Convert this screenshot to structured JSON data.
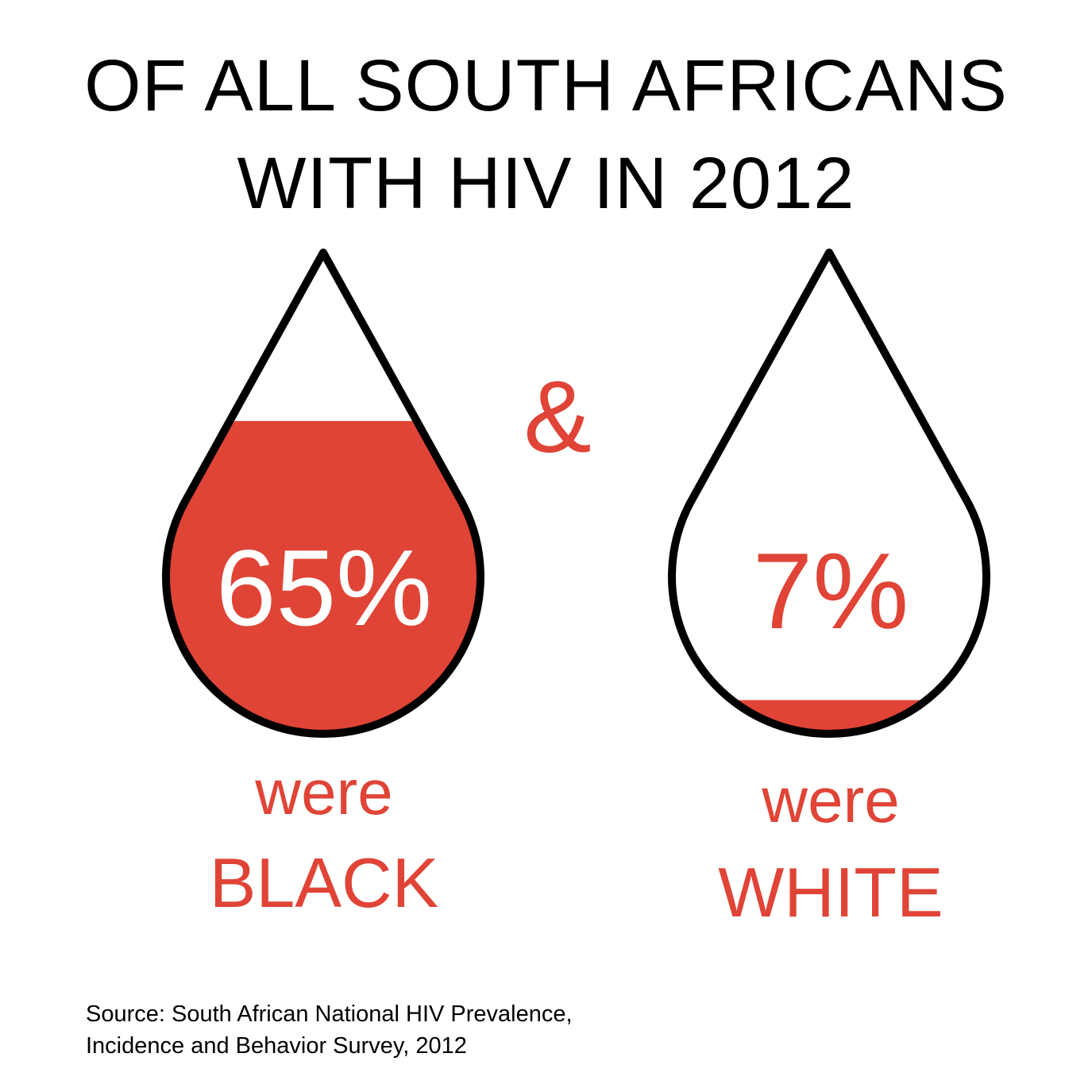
{
  "title": {
    "line1": "OF ALL SOUTH AFRICANS",
    "line2": "WITH HIV IN 2012"
  },
  "connector": "&",
  "colors": {
    "accent": "#e04436",
    "outline": "#000000",
    "background": "#ffffff",
    "text": "#000000"
  },
  "source": {
    "line1": "Source: South African National HIV Prevalence,",
    "line2": "Incidence and Behavior Survey, 2012"
  },
  "chart_data": {
    "type": "bar",
    "title": "OF ALL SOUTH AFRICANS WITH HIV IN 2012",
    "categories": [
      "BLACK",
      "WHITE"
    ],
    "values": [
      65,
      7
    ],
    "unit": "%",
    "ylim": [
      0,
      100
    ],
    "items": [
      {
        "label": "65%",
        "prefix": "were",
        "group": "BLACK",
        "value": 65
      },
      {
        "label": "7%",
        "prefix": "were",
        "group": "WHITE",
        "value": 7
      }
    ]
  }
}
